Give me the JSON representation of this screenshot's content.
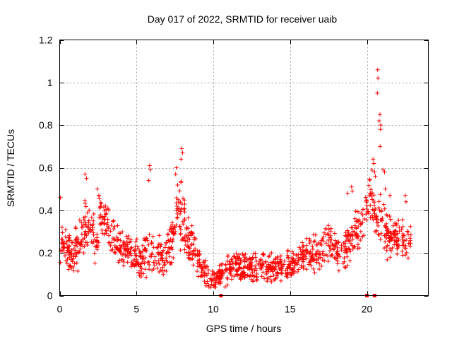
{
  "chart_data": {
    "type": "scatter",
    "title": "Day 017 of 2022, SRMTID for receiver uaib",
    "xlabel": "GPS time / hours",
    "ylabel": "SRMTID / TECUs",
    "xlim": [
      0,
      24
    ],
    "ylim": [
      0,
      1.2
    ],
    "grid": true,
    "marker": "+",
    "color": "#ff0000",
    "xticks": [
      0,
      5,
      10,
      15,
      20
    ],
    "xtick_labels": [
      "0",
      "5",
      "10",
      "15",
      "20"
    ],
    "yticks": [
      0,
      0.2,
      0.4,
      0.6,
      0.8,
      1.0,
      1.2
    ],
    "ytick_labels": [
      "0",
      "0.2",
      "0.4",
      "0.6",
      "0.8",
      "1",
      "1.2"
    ],
    "series": [
      {
        "name": "SRMTID",
        "profile_x": [
          0,
          0.3,
          0.7,
          1.0,
          1.5,
          1.8,
          2.3,
          2.6,
          3.0,
          3.3,
          3.7,
          4.2,
          4.8,
          5.3,
          5.8,
          6.2,
          6.8,
          7.2,
          7.6,
          7.9,
          8.3,
          8.8,
          9.3,
          9.8,
          10.3,
          10.8,
          11.5,
          12.2,
          13.0,
          13.8,
          14.5,
          15.2,
          15.8,
          16.4,
          17.0,
          17.5,
          18.0,
          18.5,
          19.0,
          19.5,
          20.0,
          20.3,
          20.6,
          20.9,
          21.3,
          21.7,
          22.1,
          22.5,
          22.9
        ],
        "profile_y": [
          0.22,
          0.25,
          0.18,
          0.2,
          0.28,
          0.35,
          0.25,
          0.38,
          0.33,
          0.3,
          0.24,
          0.22,
          0.2,
          0.17,
          0.22,
          0.2,
          0.18,
          0.22,
          0.4,
          0.38,
          0.28,
          0.2,
          0.12,
          0.08,
          0.08,
          0.12,
          0.14,
          0.12,
          0.14,
          0.13,
          0.14,
          0.15,
          0.18,
          0.2,
          0.2,
          0.25,
          0.2,
          0.2,
          0.25,
          0.32,
          0.4,
          0.48,
          0.35,
          0.38,
          0.3,
          0.25,
          0.3,
          0.22,
          0.28
        ],
        "spread": [
          0.12,
          0.1,
          0.1,
          0.12,
          0.14,
          0.15,
          0.12,
          0.14,
          0.12,
          0.12,
          0.1,
          0.1,
          0.1,
          0.1,
          0.14,
          0.12,
          0.1,
          0.12,
          0.16,
          0.2,
          0.12,
          0.1,
          0.08,
          0.06,
          0.06,
          0.08,
          0.08,
          0.08,
          0.08,
          0.08,
          0.08,
          0.08,
          0.08,
          0.1,
          0.1,
          0.12,
          0.1,
          0.1,
          0.12,
          0.12,
          0.12,
          0.16,
          0.12,
          0.14,
          0.14,
          0.1,
          0.12,
          0.1,
          0.06
        ],
        "point_count": 1400,
        "outliers": [
          [
            0.05,
            0.46
          ],
          [
            1.65,
            0.57
          ],
          [
            1.75,
            0.55
          ],
          [
            2.45,
            0.5
          ],
          [
            2.55,
            0.47
          ],
          [
            5.85,
            0.61
          ],
          [
            5.9,
            0.59
          ],
          [
            5.8,
            0.54
          ],
          [
            7.55,
            0.57
          ],
          [
            7.6,
            0.6
          ],
          [
            7.95,
            0.69
          ],
          [
            8.0,
            0.67
          ],
          [
            7.9,
            0.64
          ],
          [
            18.75,
            0.48
          ],
          [
            19.0,
            0.51
          ],
          [
            19.05,
            0.49
          ],
          [
            20.4,
            0.64
          ],
          [
            20.45,
            0.62
          ],
          [
            20.5,
            0.58
          ],
          [
            20.55,
            0.56
          ],
          [
            20.7,
            1.06
          ],
          [
            20.72,
            1.02
          ],
          [
            20.68,
            0.95
          ],
          [
            20.85,
            0.85
          ],
          [
            20.8,
            0.82
          ],
          [
            20.88,
            0.78
          ],
          [
            20.9,
            0.8
          ],
          [
            20.86,
            0.7
          ],
          [
            21.05,
            0.59
          ],
          [
            21.15,
            0.58
          ],
          [
            21.2,
            0.5
          ],
          [
            21.5,
            0.47
          ],
          [
            22.5,
            0.47
          ],
          [
            22.55,
            0.44
          ]
        ],
        "zero_points": [
          [
            10.5,
            0.0
          ],
          [
            20.0,
            0.0
          ],
          [
            20.5,
            0.0
          ]
        ]
      }
    ]
  }
}
